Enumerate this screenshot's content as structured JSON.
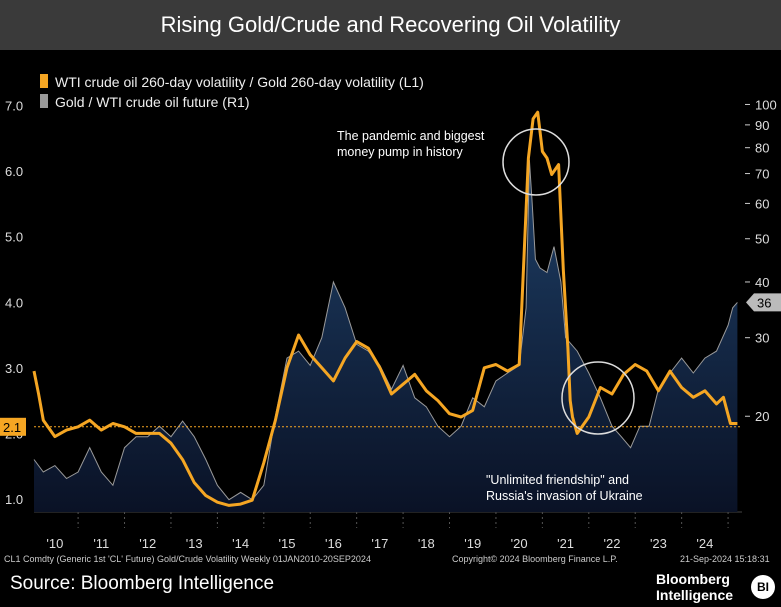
{
  "title": "Rising Gold/Crude and Recovering Oil Volatility",
  "footer": {
    "left": "CL1 Comdty (Generic 1st 'CL' Future) Gold/Crude Volatility  Weekly 01JAN2010-20SEP2024",
    "center": "Copyright© 2024 Bloomberg Finance L.P.",
    "right": "21-Sep-2024 15:18:31"
  },
  "source": "Source: Bloomberg Intelligence",
  "brand": {
    "name_line1": "Bloomberg",
    "name_line2": "Intelligence",
    "logo": "BI"
  },
  "colors": {
    "vol_line": "#f5a623",
    "ratio_line": "#9a9a9a",
    "ratio_fill_top": "#1e3f66",
    "ratio_fill_bottom": "#0a1226",
    "ref_line": "#f5a623"
  },
  "chart_data": {
    "type": "line",
    "title": "Rising Gold/Crude and Recovering Oil Volatility",
    "x_tick_labels": [
      "'10",
      "'11",
      "'12",
      "'13",
      "'14",
      "'15",
      "'16",
      "'17",
      "'18",
      "'19",
      "'20",
      "'21",
      "'22",
      "'23",
      "'24"
    ],
    "left_axis": {
      "ticks": [
        "7.0",
        "6.0",
        "5.0",
        "4.0",
        "3.0",
        "2.0",
        "1.0"
      ],
      "range": [
        0.8,
        7.3
      ]
    },
    "right_axis": {
      "scale": "log",
      "ticks": [
        "100",
        "90",
        "80",
        "70",
        "60",
        "50",
        "40",
        "30",
        "20"
      ],
      "range": [
        12.2,
        110
      ]
    },
    "current_values": {
      "left": "2.1",
      "right": "36"
    },
    "annotations": [
      {
        "text_lines": [
          "The pandemic and biggest",
          "money pump in history"
        ]
      },
      {
        "text_lines": [
          "\"Unlimited friendship\" and",
          "Russia's invasion of Ukraine"
        ]
      }
    ],
    "series": [
      {
        "name": "WTI crude oil 260-day volatility / Gold 260-day volatility (L1)",
        "axis": "left",
        "x": [
          2009.55,
          2009.65,
          2009.75,
          2010.0,
          2010.25,
          2010.5,
          2010.75,
          2011.0,
          2011.25,
          2011.5,
          2011.75,
          2012.0,
          2012.25,
          2012.5,
          2012.75,
          2013.0,
          2013.25,
          2013.5,
          2013.75,
          2014.0,
          2014.25,
          2014.5,
          2014.75,
          2015.0,
          2015.25,
          2015.5,
          2015.75,
          2016.0,
          2016.25,
          2016.5,
          2016.75,
          2017.0,
          2017.25,
          2017.5,
          2017.75,
          2018.0,
          2018.25,
          2018.5,
          2018.75,
          2019.0,
          2019.25,
          2019.5,
          2019.75,
          2020.0,
          2020.2,
          2020.3,
          2020.4,
          2020.5,
          2020.6,
          2020.7,
          2020.85,
          2020.95,
          2021.05,
          2021.1,
          2021.15,
          2021.25,
          2021.5,
          2021.75,
          2022.0,
          2022.25,
          2022.5,
          2022.75,
          2023.0,
          2023.25,
          2023.5,
          2023.75,
          2024.0,
          2024.25,
          2024.4,
          2024.55,
          2024.7
        ],
        "values": [
          2.95,
          2.6,
          2.2,
          1.95,
          2.05,
          2.1,
          2.2,
          2.05,
          2.15,
          2.1,
          2.0,
          2.0,
          2.0,
          1.85,
          1.6,
          1.25,
          1.05,
          0.95,
          0.9,
          0.92,
          0.98,
          1.55,
          2.2,
          3.0,
          3.5,
          3.2,
          3.0,
          2.8,
          3.15,
          3.4,
          3.3,
          3.0,
          2.6,
          2.75,
          2.9,
          2.65,
          2.5,
          2.3,
          2.25,
          2.35,
          3.0,
          3.05,
          2.95,
          3.05,
          6.2,
          6.8,
          6.9,
          6.3,
          6.2,
          5.95,
          6.1,
          4.5,
          3.3,
          2.5,
          2.25,
          2.0,
          2.25,
          2.7,
          2.6,
          2.9,
          3.05,
          2.95,
          2.65,
          2.95,
          2.7,
          2.55,
          2.65,
          2.45,
          2.55,
          2.15,
          2.15
        ]
      },
      {
        "name": "Gold / WTI crude oil future (R1)",
        "axis": "right",
        "x": [
          2009.55,
          2009.75,
          2010.0,
          2010.25,
          2010.5,
          2010.75,
          2011.0,
          2011.25,
          2011.5,
          2011.75,
          2012.0,
          2012.25,
          2012.5,
          2012.75,
          2013.0,
          2013.25,
          2013.5,
          2013.75,
          2014.0,
          2014.25,
          2014.5,
          2014.75,
          2015.0,
          2015.25,
          2015.5,
          2015.75,
          2016.0,
          2016.25,
          2016.5,
          2016.75,
          2017.0,
          2017.25,
          2017.5,
          2017.75,
          2018.0,
          2018.25,
          2018.5,
          2018.75,
          2019.0,
          2019.25,
          2019.5,
          2019.75,
          2020.0,
          2020.15,
          2020.22,
          2020.28,
          2020.35,
          2020.45,
          2020.6,
          2020.75,
          2020.9,
          2021.0,
          2021.25,
          2021.5,
          2021.75,
          2022.0,
          2022.2,
          2022.4,
          2022.6,
          2022.8,
          2023.0,
          2023.25,
          2023.5,
          2023.75,
          2024.0,
          2024.25,
          2024.5,
          2024.6,
          2024.7
        ],
        "values": [
          16,
          15,
          15.5,
          14.5,
          15,
          17,
          15,
          14,
          17,
          18,
          18,
          19,
          18,
          19.5,
          18,
          16,
          14,
          13,
          13.5,
          13,
          14,
          20,
          27,
          28,
          26,
          30,
          40,
          35,
          29,
          28,
          26,
          23,
          26,
          22,
          21,
          19,
          18,
          19,
          22,
          21,
          24,
          25,
          26,
          35,
          75,
          60,
          45,
          43,
          42,
          48,
          40,
          30,
          28,
          25,
          22,
          19,
          18,
          17,
          19,
          19,
          23,
          25,
          27,
          25,
          27,
          28,
          32,
          35,
          36
        ]
      }
    ],
    "reference_line": {
      "axis": "left",
      "value": 2.1
    }
  }
}
